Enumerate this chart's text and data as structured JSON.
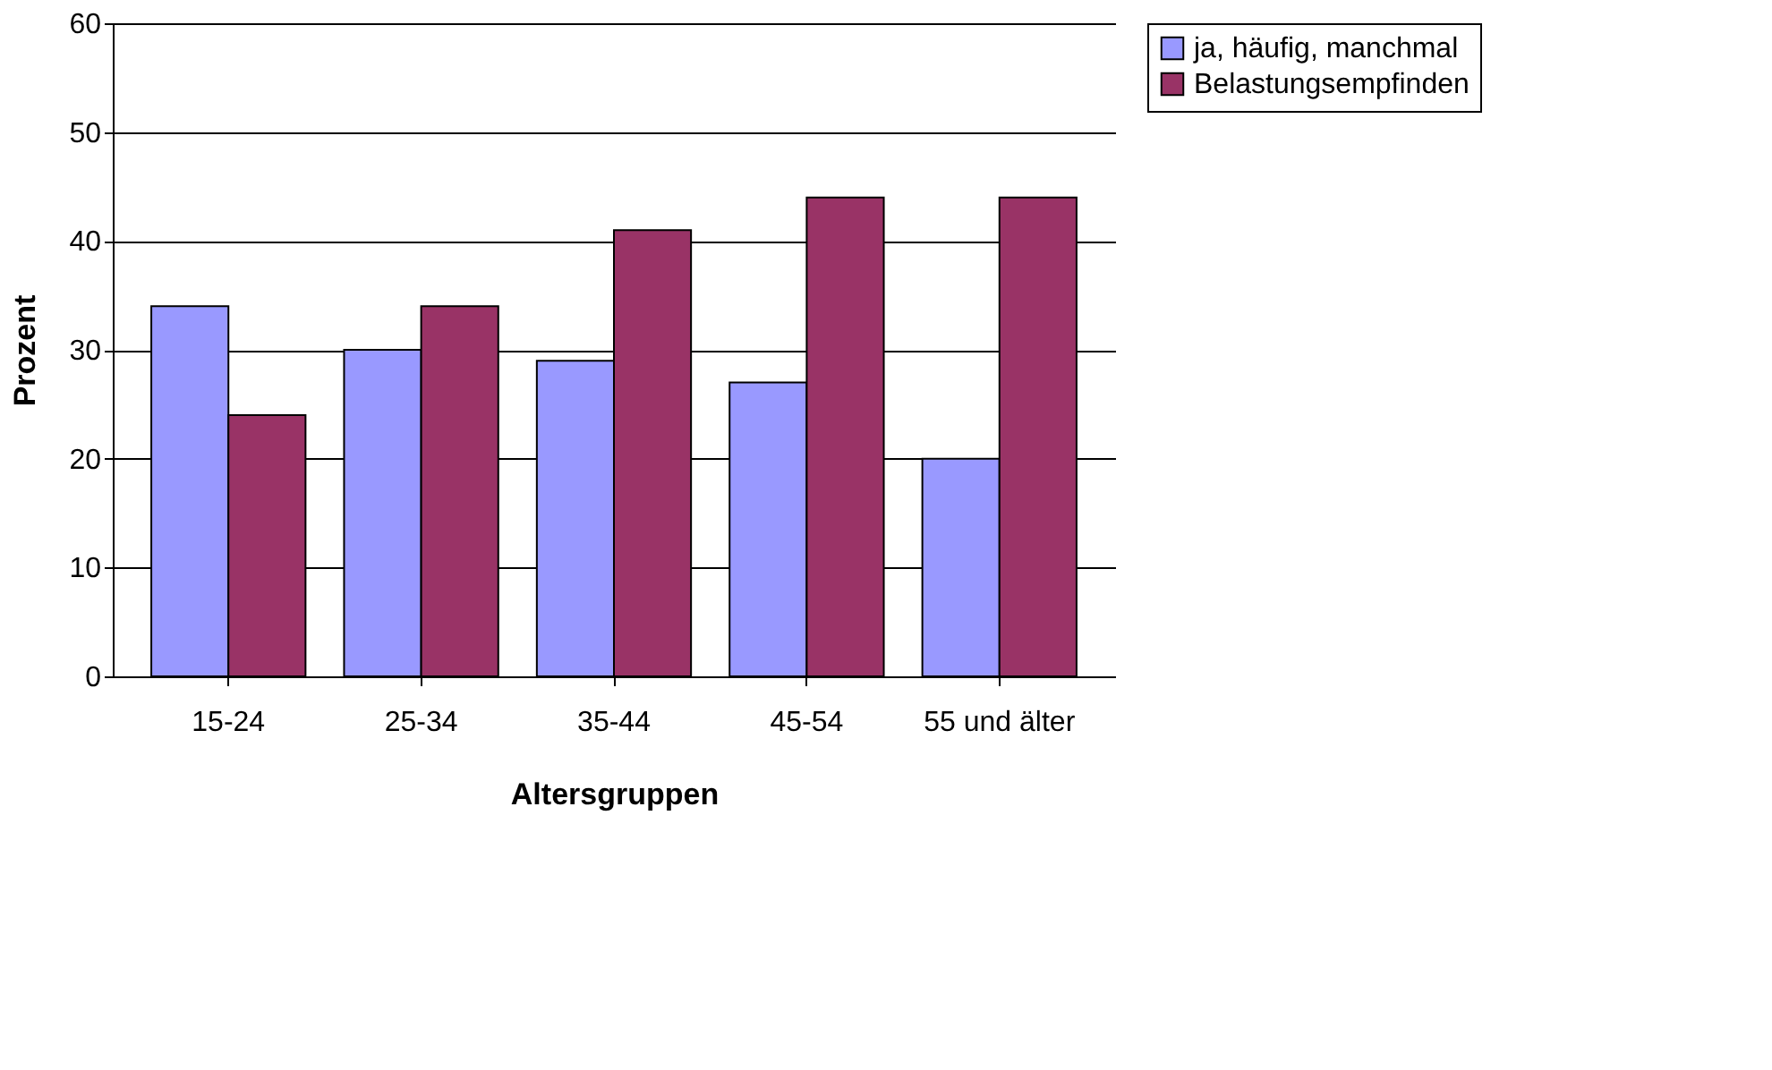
{
  "chart_data": {
    "type": "bar",
    "xlabel": "Altersgruppen",
    "ylabel": "Prozent",
    "categories": [
      "15-24",
      "25-34",
      "35-44",
      "45-54",
      "55 und älter"
    ],
    "series": [
      {
        "name": "ja, häufig, manchmal",
        "color": "#9999ff",
        "values": [
          34,
          30,
          29,
          27,
          20
        ]
      },
      {
        "name": "Belastungsempfinden",
        "color": "#993366",
        "values": [
          24,
          34,
          41,
          44,
          44
        ]
      }
    ],
    "ylim": [
      0,
      60
    ],
    "yticks": [
      0,
      10,
      20,
      30,
      40,
      50,
      60
    ],
    "grid": "y",
    "legend": "right"
  }
}
